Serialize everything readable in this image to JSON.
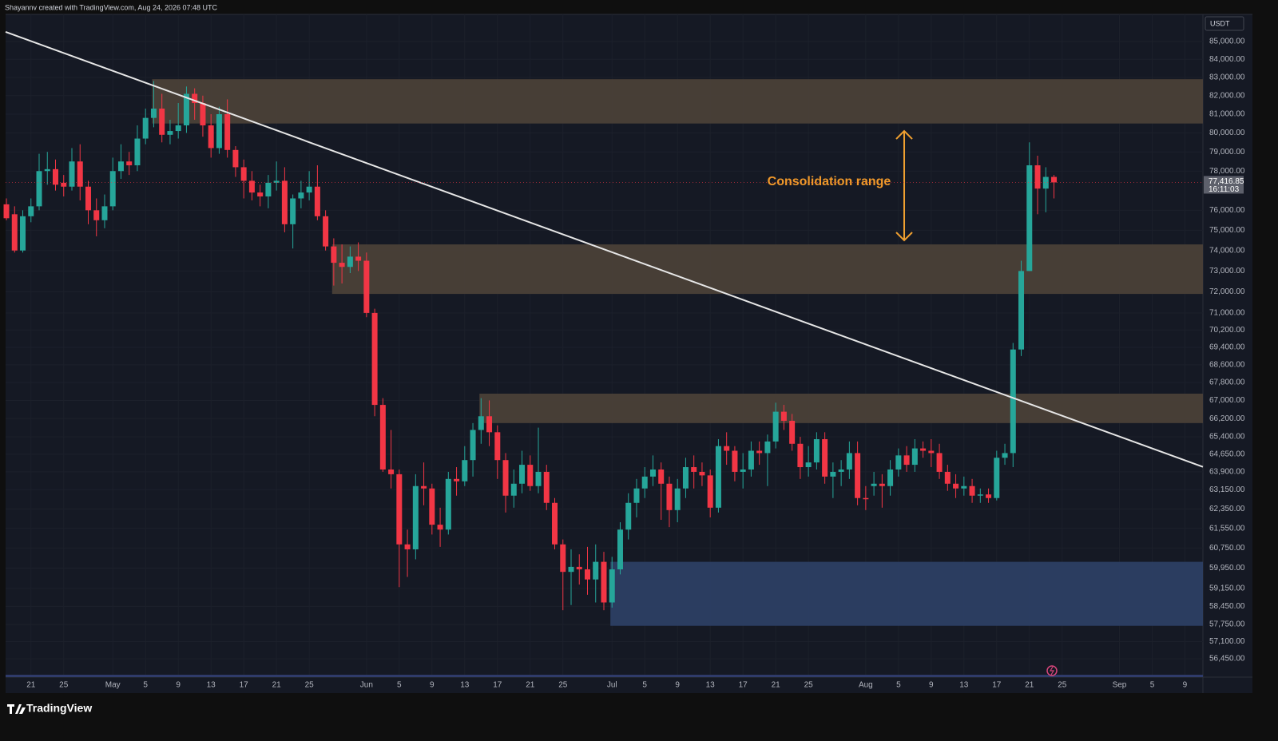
{
  "chart_data": {
    "type": "candlestick",
    "header": "Shayannv created with TradingView.com, Aug 24, 2026 07:48 UTC",
    "currency": "USDT",
    "brand": "TradingView",
    "annotation": "Consolidation range",
    "log_scale": true,
    "grid": true,
    "up_color": "#26a69a",
    "down_color": "#f23645",
    "xlim": [
      -0.1,
      146.2
    ],
    "ylim": [
      55770,
      86540
    ],
    "xticks": [
      {
        "value": 3,
        "label": "21"
      },
      {
        "value": 7,
        "label": "25"
      },
      {
        "value": 13,
        "label": "May"
      },
      {
        "value": 17,
        "label": "5"
      },
      {
        "value": 21,
        "label": "9"
      },
      {
        "value": 25,
        "label": "13"
      },
      {
        "value": 29,
        "label": "17"
      },
      {
        "value": 33,
        "label": "21"
      },
      {
        "value": 37,
        "label": "25"
      },
      {
        "value": 44,
        "label": "Jun"
      },
      {
        "value": 48,
        "label": "5"
      },
      {
        "value": 52,
        "label": "9"
      },
      {
        "value": 56,
        "label": "13"
      },
      {
        "value": 60,
        "label": "17"
      },
      {
        "value": 64,
        "label": "21"
      },
      {
        "value": 68,
        "label": "25"
      },
      {
        "value": 74,
        "label": "Jul"
      },
      {
        "value": 78,
        "label": "5"
      },
      {
        "value": 82,
        "label": "9"
      },
      {
        "value": 86,
        "label": "13"
      },
      {
        "value": 90,
        "label": "17"
      },
      {
        "value": 94,
        "label": "21"
      },
      {
        "value": 98,
        "label": "25"
      },
      {
        "value": 105,
        "label": "Aug"
      },
      {
        "value": 109,
        "label": "5"
      },
      {
        "value": 113,
        "label": "9"
      },
      {
        "value": 117,
        "label": "13"
      },
      {
        "value": 121,
        "label": "17"
      },
      {
        "value": 125,
        "label": "21"
      },
      {
        "value": 129,
        "label": "25"
      },
      {
        "value": 136,
        "label": "Sep"
      },
      {
        "value": 140,
        "label": "5"
      },
      {
        "value": 144,
        "label": "9"
      }
    ],
    "yticks": [
      {
        "value": 85000,
        "label": "85,000.00"
      },
      {
        "value": 84000,
        "label": "84,000.00"
      },
      {
        "value": 83000,
        "label": "83,000.00"
      },
      {
        "value": 82000,
        "label": "82,000.00"
      },
      {
        "value": 81000,
        "label": "81,000.00"
      },
      {
        "value": 80000,
        "label": "80,000.00"
      },
      {
        "value": 79000,
        "label": "79,000.00"
      },
      {
        "value": 78000,
        "label": "78,000.00"
      },
      {
        "value": 76000,
        "label": "76,000.00"
      },
      {
        "value": 75000,
        "label": "75,000.00"
      },
      {
        "value": 74000,
        "label": "74,000.00"
      },
      {
        "value": 73000,
        "label": "73,000.00"
      },
      {
        "value": 72000,
        "label": "72,000.00"
      },
      {
        "value": 71000,
        "label": "71,000.00"
      },
      {
        "value": 70200,
        "label": "70,200.00"
      },
      {
        "value": 69400,
        "label": "69,400.00"
      },
      {
        "value": 68600,
        "label": "68,600.00"
      },
      {
        "value": 67800,
        "label": "67,800.00"
      },
      {
        "value": 67000,
        "label": "67,000.00"
      },
      {
        "value": 66200,
        "label": "66,200.00"
      },
      {
        "value": 65400,
        "label": "65,400.00"
      },
      {
        "value": 64650,
        "label": "64,650.00"
      },
      {
        "value": 63900,
        "label": "63,900.00"
      },
      {
        "value": 63150,
        "label": "63,150.00"
      },
      {
        "value": 62350,
        "label": "62,350.00"
      },
      {
        "value": 61550,
        "label": "61,550.00"
      },
      {
        "value": 60750,
        "label": "60,750.00"
      },
      {
        "value": 59950,
        "label": "59,950.00"
      },
      {
        "value": 59150,
        "label": "59,150.00"
      },
      {
        "value": 58450,
        "label": "58,450.00"
      },
      {
        "value": 57750,
        "label": "57,750.00"
      },
      {
        "value": 57100,
        "label": "57,100.00"
      },
      {
        "value": 56450,
        "label": "56,450.00"
      }
    ],
    "last_price": {
      "value": 77416.85,
      "label": "77,416.85"
    },
    "countdown": "16:11:03",
    "zones": [
      {
        "start": 17.8,
        "top": 82900,
        "bottom": 80500,
        "color": "#4a4038"
      },
      {
        "start": 39.8,
        "top": 74300,
        "bottom": 71900,
        "color": "#4a4038"
      },
      {
        "start": 57.8,
        "top": 67300,
        "bottom": 66000,
        "color": "#4a4038"
      },
      {
        "start": 73.8,
        "top": 60200,
        "bottom": 57700,
        "color": "#2c3f64"
      }
    ],
    "trendline": {
      "x": [
        -0.1,
        146.2
      ],
      "y": [
        85540,
        64110
      ],
      "color": "#e6e6e6"
    },
    "range_arrow": {
      "x": 109.7,
      "y": [
        80100,
        74500
      ],
      "color": "#f0a030"
    },
    "candles": {
      "open": [
        76300,
        75800,
        74000,
        75700,
        76200,
        78000,
        78100,
        77400,
        77200,
        78500,
        77200,
        76000,
        75500,
        76200,
        78000,
        78500,
        78300,
        79700,
        80800,
        81300,
        79900,
        80100,
        80400,
        82100,
        81600,
        80400,
        79200,
        81000,
        79100,
        78200,
        77500,
        76900,
        76700,
        77400,
        77500,
        75300,
        76600,
        76900,
        77200,
        75700,
        74200,
        73400,
        73200,
        73700,
        73500,
        71000,
        66800,
        64000,
        63800,
        60900,
        60700,
        63300,
        63200,
        61700,
        61500,
        63600,
        63500,
        64400,
        65700,
        66300,
        65600,
        64400,
        62900,
        63400,
        64200,
        63300,
        63900,
        62600,
        60900,
        59800,
        60000,
        59900,
        59500,
        60200,
        58600,
        59900,
        61500,
        62600,
        63200,
        63700,
        64000,
        63400,
        62300,
        63200,
        64100,
        63900,
        63750,
        62400,
        65000,
        64800,
        63900,
        64000,
        64800,
        64700,
        65200,
        66500,
        66100,
        65100,
        64100,
        64300,
        65300,
        63700,
        63900,
        64000,
        64700,
        62800,
        63300,
        63400,
        63300,
        64000,
        64600,
        64200,
        64900,
        64800,
        64700,
        63900,
        63400,
        63200,
        63300,
        62900,
        62950,
        62800,
        64500,
        64700,
        69300,
        73000,
        78300,
        77100,
        77700
      ],
      "high": [
        76600,
        76200,
        76000,
        76600,
        78900,
        79000,
        78600,
        77800,
        79200,
        79400,
        77500,
        76600,
        76800,
        78700,
        79400,
        79000,
        80400,
        81300,
        82800,
        82100,
        80700,
        81600,
        82500,
        82400,
        82000,
        81000,
        81400,
        81800,
        79300,
        78600,
        78000,
        77300,
        77800,
        78500,
        78200,
        76800,
        77500,
        78000,
        78300,
        76000,
        74600,
        74300,
        74200,
        74400,
        73900,
        71200,
        67100,
        65700,
        64000,
        61500,
        63800,
        64300,
        63400,
        62400,
        63900,
        64100,
        65000,
        66000,
        67100,
        67000,
        65900,
        64700,
        64000,
        64800,
        64600,
        65800,
        64200,
        62800,
        61100,
        60700,
        60500,
        60800,
        60900,
        60600,
        60400,
        61800,
        63000,
        63600,
        64100,
        64600,
        64300,
        63700,
        63600,
        64500,
        64600,
        64300,
        64000,
        65300,
        65600,
        65000,
        64700,
        65200,
        65200,
        65500,
        66900,
        66800,
        66400,
        65400,
        65000,
        65600,
        65600,
        64300,
        64400,
        65200,
        65200,
        63300,
        63900,
        63800,
        64400,
        64900,
        65000,
        65300,
        65200,
        65300,
        65100,
        64200,
        63800,
        63700,
        63600,
        63200,
        63200,
        64800,
        65100,
        69600,
        73500,
        79500,
        78800,
        78200,
        77800
      ],
      "low": [
        75500,
        73900,
        73900,
        75400,
        76000,
        77300,
        77000,
        76700,
        77000,
        76500,
        75300,
        74700,
        75100,
        76000,
        77600,
        77800,
        78000,
        79400,
        80300,
        79500,
        79400,
        79700,
        80000,
        80700,
        79800,
        78700,
        78900,
        78700,
        77700,
        76600,
        76500,
        76200,
        76100,
        77000,
        74900,
        74100,
        76100,
        76500,
        75500,
        74000,
        72300,
        72400,
        72900,
        73000,
        70800,
        66300,
        63900,
        63200,
        59200,
        59600,
        60300,
        62500,
        61300,
        60800,
        61300,
        62900,
        63300,
        63700,
        65100,
        65000,
        63600,
        62200,
        62400,
        63000,
        63100,
        63000,
        62300,
        60700,
        58300,
        58500,
        59300,
        58900,
        58600,
        58300,
        58400,
        59700,
        61100,
        62000,
        62800,
        63300,
        61900,
        61600,
        61800,
        62800,
        63200,
        63300,
        62000,
        62200,
        64200,
        63500,
        63200,
        63700,
        64200,
        63300,
        64900,
        65700,
        64800,
        63600,
        63700,
        64000,
        63400,
        62800,
        63300,
        63600,
        62500,
        62300,
        62900,
        62400,
        62900,
        63700,
        63900,
        63900,
        64500,
        64100,
        63600,
        63100,
        62800,
        62900,
        62600,
        62600,
        62600,
        62700,
        64200,
        64100,
        69000,
        73000,
        75800,
        75900,
        76600
      ],
      "close": [
        75600,
        74000,
        75700,
        76200,
        78000,
        78100,
        77300,
        77200,
        78500,
        77200,
        76000,
        75500,
        76200,
        78000,
        78500,
        78300,
        79700,
        80800,
        81300,
        79900,
        80100,
        80400,
        82100,
        81600,
        80400,
        79200,
        81000,
        79100,
        78200,
        77500,
        76900,
        76700,
        77400,
        77500,
        75300,
        76600,
        76900,
        77200,
        75700,
        74200,
        73400,
        73200,
        73700,
        73500,
        71000,
        66800,
        64000,
        63800,
        60900,
        60700,
        63300,
        63200,
        61700,
        61500,
        63600,
        63500,
        64400,
        65700,
        66300,
        65600,
        64400,
        62900,
        63400,
        64200,
        63300,
        63900,
        62600,
        60900,
        59800,
        60000,
        59900,
        59500,
        60200,
        58600,
        59900,
        61500,
        62600,
        63200,
        63700,
        64000,
        63400,
        62300,
        63200,
        64100,
        63900,
        63750,
        62400,
        65000,
        64800,
        63900,
        64000,
        64800,
        64700,
        65200,
        66500,
        66100,
        65100,
        64100,
        64300,
        65300,
        63700,
        63900,
        64000,
        64700,
        62800,
        62750,
        63400,
        63300,
        64000,
        64600,
        64200,
        64900,
        64800,
        64700,
        63900,
        63400,
        63200,
        63300,
        62900,
        62950,
        62800,
        64500,
        64700,
        69300,
        73000,
        78300,
        77100,
        77700,
        77416.85
      ]
    }
  }
}
